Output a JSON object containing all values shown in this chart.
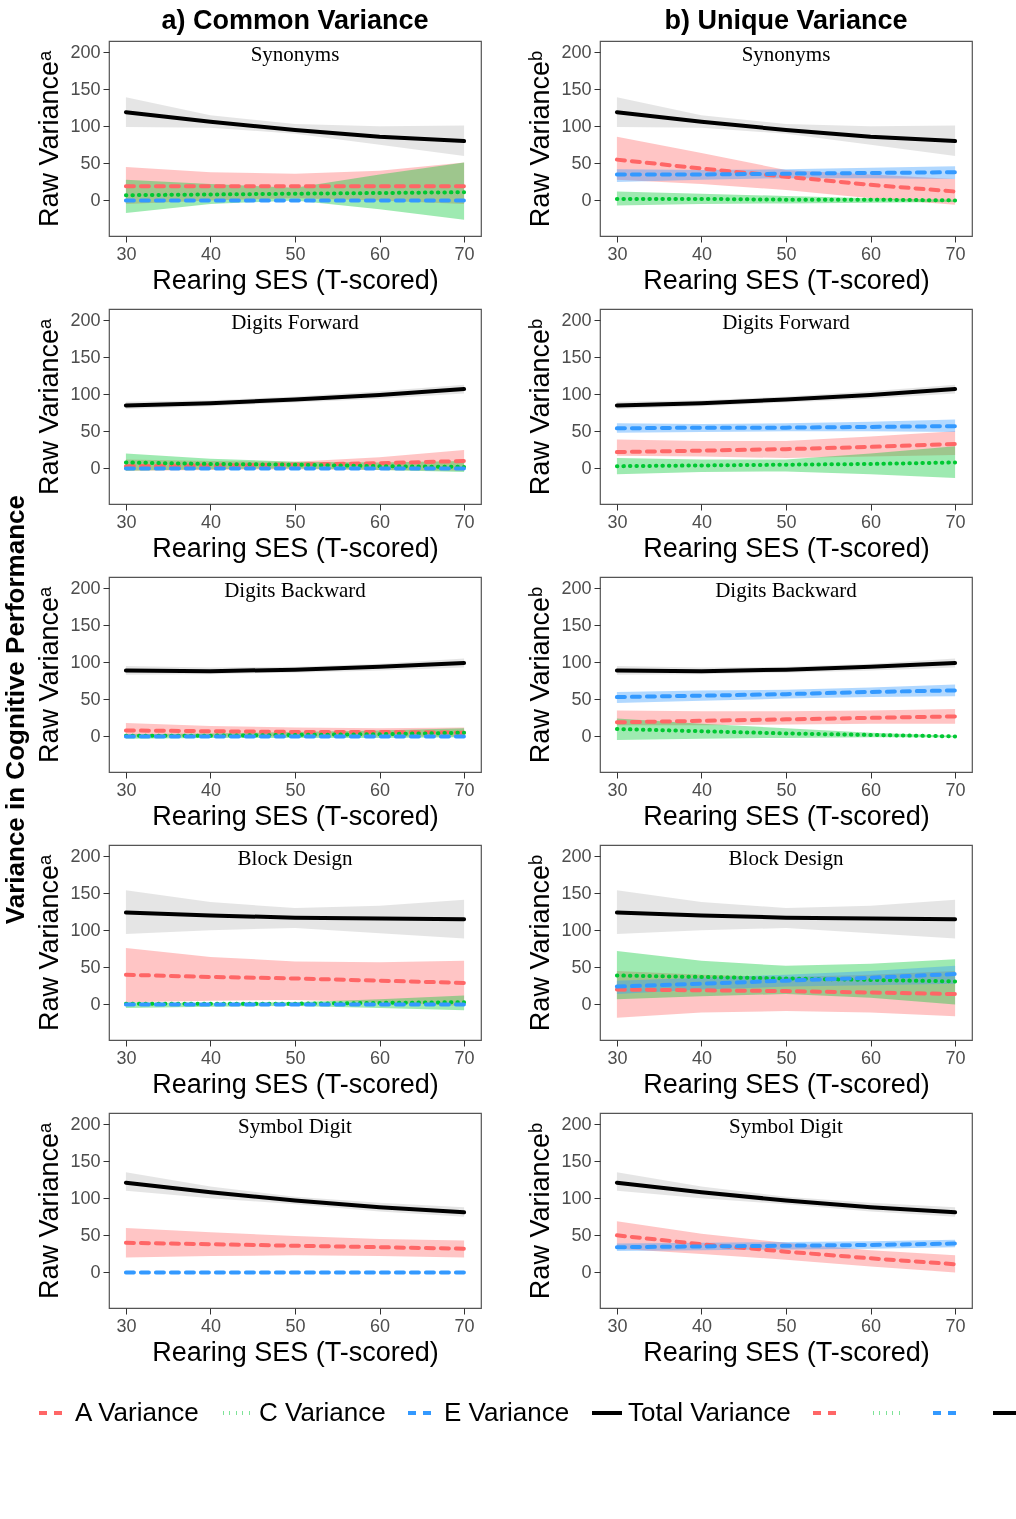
{
  "chart_data": [
    {
      "type": "line",
      "title": "Synonyms",
      "annotations": [
        "a) Common Variance",
        "Variance in Cognitive Performance"
      ],
      "xlabel": "Rearing SES (T-scored)",
      "ylabel": "Raw Varianceᵃ",
      "x": [
        30,
        40,
        50,
        60,
        70
      ],
      "xlim": [
        28,
        72
      ],
      "xticks": [
        30,
        40,
        50,
        60,
        70
      ],
      "ylim": [
        -48,
        215
      ],
      "yticks": [
        0,
        50,
        100,
        150,
        200
      ],
      "series": [
        {
          "color": "#ff6666",
          "line_style": "dashed",
          "values": [
            19,
            19,
            19,
            19,
            19
          ],
          "lower": [
            -5,
            0,
            3,
            0,
            -5
          ],
          "upper": [
            45,
            38,
            36,
            40,
            51
          ]
        },
        {
          "color": "#00c832",
          "line_style": "dotted",
          "values": [
            7,
            8,
            9,
            10,
            11
          ],
          "lower": [
            -17,
            -5,
            0,
            -12,
            -26
          ],
          "upper": [
            28,
            22,
            17,
            35,
            51
          ]
        },
        {
          "color": "#3399ff",
          "line_style": "dashed",
          "values": [
            0,
            0,
            0,
            0,
            0
          ]
        },
        {
          "color": "#000000",
          "line_style": "solid",
          "values": [
            119,
            106,
            95,
            86,
            80
          ],
          "lower": [
            99,
            98,
            90,
            75,
            60
          ],
          "upper": [
            139,
            115,
            103,
            100,
            101
          ]
        }
      ]
    },
    {
      "type": "line",
      "title": "Synonyms",
      "annotations": [
        "b) Unique Variance"
      ],
      "xlabel": "Rearing SES (T-scored)",
      "ylabel": "Raw Varianceᵇ",
      "x": [
        30,
        40,
        50,
        60,
        70
      ],
      "xlim": [
        28,
        72
      ],
      "xticks": [
        30,
        40,
        50,
        60,
        70
      ],
      "ylim": [
        -48,
        215
      ],
      "yticks": [
        0,
        50,
        100,
        150,
        200
      ],
      "series": [
        {
          "color": "#ff6666",
          "line_style": "dashed",
          "values": [
            55,
            43,
            32,
            21,
            12
          ],
          "lower": [
            28,
            22,
            14,
            3,
            -6
          ],
          "upper": [
            86,
            64,
            41,
            35,
            29
          ]
        },
        {
          "color": "#00c832",
          "line_style": "dotted",
          "values": [
            2,
            2,
            1,
            1,
            0
          ],
          "lower": [
            -7,
            -5,
            -4,
            -3,
            -2
          ],
          "upper": [
            12,
            9,
            6,
            3,
            1
          ]
        },
        {
          "color": "#3399ff",
          "line_style": "dashed",
          "values": [
            35,
            35,
            36,
            37,
            38
          ],
          "lower": [
            25,
            28,
            30,
            30,
            29
          ],
          "upper": [
            42,
            41,
            42,
            44,
            46
          ]
        },
        {
          "color": "#000000",
          "line_style": "solid",
          "values": [
            119,
            106,
            95,
            86,
            80
          ],
          "lower": [
            99,
            98,
            90,
            75,
            60
          ],
          "upper": [
            139,
            115,
            103,
            100,
            101
          ]
        }
      ]
    },
    {
      "type": "line",
      "title": "Digits Forward",
      "xlabel": "Rearing SES (T-scored)",
      "ylabel": "Raw Varianceᵃ",
      "x": [
        30,
        40,
        50,
        60,
        70
      ],
      "xlim": [
        28,
        72
      ],
      "xticks": [
        30,
        40,
        50,
        60,
        70
      ],
      "ylim": [
        -48,
        215
      ],
      "yticks": [
        0,
        50,
        100,
        150,
        200
      ],
      "series": [
        {
          "color": "#ff6666",
          "line_style": "dashed",
          "values": [
            3,
            4,
            5,
            7,
            10
          ],
          "lower": [
            -3,
            -2,
            -1,
            -2,
            -3
          ],
          "upper": [
            12,
            10,
            9,
            15,
            25
          ]
        },
        {
          "color": "#00c832",
          "line_style": "dotted",
          "values": [
            8,
            6,
            5,
            3,
            2
          ],
          "lower": [
            -3,
            -1,
            0,
            -2,
            -5
          ],
          "upper": [
            20,
            13,
            9,
            8,
            10
          ]
        },
        {
          "color": "#3399ff",
          "line_style": "dashed",
          "values": [
            0,
            0,
            0,
            0,
            0
          ]
        },
        {
          "color": "#000000",
          "line_style": "solid",
          "values": [
            85,
            88,
            93,
            99,
            107
          ],
          "lower": [
            80,
            84,
            89,
            94,
            101
          ],
          "upper": [
            90,
            92,
            97,
            104,
            113
          ]
        }
      ]
    },
    {
      "type": "line",
      "title": "Digits Forward",
      "xlabel": "Rearing SES (T-scored)",
      "ylabel": "Raw Varianceᵇ",
      "x": [
        30,
        40,
        50,
        60,
        70
      ],
      "xlim": [
        28,
        72
      ],
      "xticks": [
        30,
        40,
        50,
        60,
        70
      ],
      "ylim": [
        -48,
        215
      ],
      "yticks": [
        0,
        50,
        100,
        150,
        200
      ],
      "series": [
        {
          "color": "#ff6666",
          "line_style": "dashed",
          "values": [
            22,
            24,
            26,
            29,
            33
          ],
          "lower": [
            17,
            16,
            14,
            16,
            18
          ],
          "upper": [
            39,
            37,
            37,
            43,
            50
          ]
        },
        {
          "color": "#00c832",
          "line_style": "dotted",
          "values": [
            3,
            4,
            5,
            6,
            8
          ],
          "lower": [
            -8,
            -5,
            -4,
            -8,
            -13
          ],
          "upper": [
            14,
            12,
            12,
            20,
            30
          ]
        },
        {
          "color": "#3399ff",
          "line_style": "dashed",
          "values": [
            54,
            55,
            55,
            56,
            57
          ],
          "lower": [
            48,
            49,
            50,
            50,
            49
          ],
          "upper": [
            61,
            60,
            61,
            63,
            66
          ]
        },
        {
          "color": "#000000",
          "line_style": "solid",
          "values": [
            85,
            88,
            93,
            99,
            107
          ],
          "lower": [
            80,
            84,
            89,
            94,
            101
          ],
          "upper": [
            90,
            92,
            97,
            104,
            113
          ]
        }
      ]
    },
    {
      "type": "line",
      "title": "Digits Backward",
      "xlabel": "Rearing SES (T-scored)",
      "ylabel": "Raw Varianceᵃ",
      "x": [
        30,
        40,
        50,
        60,
        70
      ],
      "xlim": [
        28,
        72
      ],
      "xticks": [
        30,
        40,
        50,
        60,
        70
      ],
      "ylim": [
        -48,
        215
      ],
      "yticks": [
        0,
        50,
        100,
        150,
        200
      ],
      "series": [
        {
          "color": "#ff6666",
          "line_style": "dashed",
          "values": [
            8,
            7,
            6,
            6,
            5
          ],
          "lower": [
            0,
            0,
            0,
            0,
            0
          ],
          "upper": [
            18,
            14,
            12,
            11,
            12
          ]
        },
        {
          "color": "#00c832",
          "line_style": "dotted",
          "values": [
            1,
            1,
            2,
            3,
            5
          ],
          "lower": [
            -3,
            -2,
            -2,
            -2,
            -1
          ],
          "upper": [
            3,
            4,
            6,
            8,
            11
          ]
        },
        {
          "color": "#3399ff",
          "line_style": "dashed",
          "values": [
            0,
            0,
            0,
            0,
            0
          ]
        },
        {
          "color": "#000000",
          "line_style": "solid",
          "values": [
            89,
            88,
            90,
            94,
            99
          ],
          "lower": [
            83,
            84,
            86,
            89,
            93
          ],
          "upper": [
            95,
            93,
            94,
            98,
            105
          ]
        }
      ]
    },
    {
      "type": "line",
      "title": "Digits Backward",
      "xlabel": "Rearing SES (T-scored)",
      "ylabel": "Raw Varianceᵇ",
      "x": [
        30,
        40,
        50,
        60,
        70
      ],
      "xlim": [
        28,
        72
      ],
      "xticks": [
        30,
        40,
        50,
        60,
        70
      ],
      "ylim": [
        -48,
        215
      ],
      "yticks": [
        0,
        50,
        100,
        150,
        200
      ],
      "series": [
        {
          "color": "#ff6666",
          "line_style": "dashed",
          "values": [
            19,
            21,
            23,
            25,
            27
          ],
          "lower": [
            15,
            15,
            16,
            17,
            17
          ],
          "upper": [
            35,
            34,
            34,
            35,
            37
          ]
        },
        {
          "color": "#00c832",
          "line_style": "dotted",
          "values": [
            10,
            7,
            4,
            2,
            0
          ],
          "lower": [
            -5,
            -3,
            -2,
            -1,
            -1
          ],
          "upper": [
            24,
            17,
            11,
            5,
            1
          ]
        },
        {
          "color": "#3399ff",
          "line_style": "dashed",
          "values": [
            53,
            55,
            57,
            60,
            62
          ],
          "lower": [
            45,
            48,
            51,
            53,
            54
          ],
          "upper": [
            60,
            62,
            63,
            66,
            70
          ]
        },
        {
          "color": "#000000",
          "line_style": "solid",
          "values": [
            89,
            88,
            90,
            94,
            99
          ],
          "lower": [
            83,
            84,
            86,
            89,
            93
          ],
          "upper": [
            95,
            93,
            94,
            98,
            105
          ]
        }
      ]
    },
    {
      "type": "line",
      "title": "Block Design",
      "xlabel": "Rearing SES (T-scored)",
      "ylabel": "Raw Varianceᵃ",
      "x": [
        30,
        40,
        50,
        60,
        70
      ],
      "xlim": [
        28,
        72
      ],
      "xticks": [
        30,
        40,
        50,
        60,
        70
      ],
      "ylim": [
        -48,
        215
      ],
      "yticks": [
        0,
        50,
        100,
        150,
        200
      ],
      "series": [
        {
          "color": "#ff6666",
          "line_style": "dashed",
          "values": [
            40,
            37,
            35,
            32,
            29
          ],
          "lower": [
            3,
            5,
            6,
            3,
            -2
          ],
          "upper": [
            76,
            64,
            58,
            57,
            59
          ]
        },
        {
          "color": "#00c832",
          "line_style": "dotted",
          "values": [
            1,
            1,
            1,
            2,
            3
          ],
          "lower": [
            -5,
            -3,
            -2,
            -5,
            -8
          ],
          "upper": [
            3,
            2,
            3,
            7,
            12
          ]
        },
        {
          "color": "#3399ff",
          "line_style": "dashed",
          "values": [
            0,
            0,
            0,
            0,
            0
          ]
        },
        {
          "color": "#000000",
          "line_style": "solid",
          "values": [
            124,
            120,
            117,
            116,
            115
          ],
          "lower": [
            95,
            100,
            103,
            96,
            89
          ],
          "upper": [
            154,
            138,
            130,
            133,
            141
          ]
        }
      ]
    },
    {
      "type": "line",
      "title": "Block Design",
      "xlabel": "Rearing SES (T-scored)",
      "ylabel": "Raw Varianceᵇ",
      "x": [
        30,
        40,
        50,
        60,
        70
      ],
      "xlim": [
        28,
        72
      ],
      "xticks": [
        30,
        40,
        50,
        60,
        70
      ],
      "ylim": [
        -48,
        215
      ],
      "yticks": [
        0,
        50,
        100,
        150,
        200
      ],
      "series": [
        {
          "color": "#ff6666",
          "line_style": "dashed",
          "values": [
            20,
            19,
            18,
            16,
            14
          ],
          "lower": [
            -18,
            -11,
            -9,
            -11,
            -16
          ],
          "upper": [
            45,
            40,
            37,
            40,
            45
          ]
        },
        {
          "color": "#00c832",
          "line_style": "dotted",
          "values": [
            39,
            37,
            35,
            33,
            31
          ],
          "lower": [
            7,
            11,
            14,
            9,
            0
          ],
          "upper": [
            72,
            59,
            52,
            55,
            61
          ]
        },
        {
          "color": "#3399ff",
          "line_style": "dashed",
          "values": [
            24,
            28,
            32,
            36,
            41
          ],
          "lower": [
            14,
            20,
            24,
            26,
            28
          ],
          "upper": [
            32,
            36,
            40,
            45,
            52
          ]
        },
        {
          "color": "#000000",
          "line_style": "solid",
          "values": [
            124,
            120,
            117,
            116,
            115
          ],
          "lower": [
            95,
            100,
            103,
            96,
            89
          ],
          "upper": [
            154,
            138,
            130,
            133,
            141
          ]
        }
      ]
    },
    {
      "type": "line",
      "title": "Symbol Digit",
      "xlabel": "Rearing SES (T-scored)",
      "ylabel": "Raw Varianceᵃ",
      "x": [
        30,
        40,
        50,
        60,
        70
      ],
      "xlim": [
        28,
        72
      ],
      "xticks": [
        30,
        40,
        50,
        60,
        70
      ],
      "ylim": [
        -48,
        215
      ],
      "yticks": [
        0,
        50,
        100,
        150,
        200
      ],
      "legend": "bottom",
      "series": [
        {
          "name": "A Variance",
          "color": "#ff6666",
          "line_style": "dashed",
          "values": [
            40,
            38,
            36,
            34,
            32
          ],
          "lower": [
            20,
            22,
            23,
            22,
            20
          ],
          "upper": [
            60,
            54,
            49,
            45,
            43
          ]
        },
        {
          "name": "C Variance",
          "color": "#00c832",
          "line_style": "dotted",
          "values": [
            null,
            null,
            null,
            null,
            null
          ]
        },
        {
          "name": "E Variance",
          "color": "#3399ff",
          "line_style": "dashed",
          "values": [
            0,
            0,
            0,
            0,
            0
          ]
        },
        {
          "name": "Total Variance",
          "color": "#000000",
          "line_style": "solid",
          "values": [
            121,
            108,
            97,
            88,
            81
          ],
          "lower": [
            110,
            100,
            92,
            82,
            75
          ],
          "upper": [
            135,
            116,
            102,
            94,
            88
          ]
        }
      ]
    },
    {
      "type": "line",
      "title": "Symbol Digit",
      "xlabel": "Rearing SES (T-scored)",
      "ylabel": "Raw Varianceᵇ",
      "x": [
        30,
        40,
        50,
        60,
        70
      ],
      "xlim": [
        28,
        72
      ],
      "xticks": [
        30,
        40,
        50,
        60,
        70
      ],
      "ylim": [
        -48,
        215
      ],
      "yticks": [
        0,
        50,
        100,
        150,
        200
      ],
      "series": [
        {
          "color": "#ff6666",
          "line_style": "dashed",
          "values": [
            50,
            38,
            28,
            19,
            11
          ],
          "lower": [
            32,
            25,
            17,
            8,
            0
          ],
          "upper": [
            69,
            52,
            40,
            30,
            23
          ]
        },
        {
          "color": "#00c832",
          "line_style": "dotted",
          "values": [
            null,
            null,
            null,
            null,
            null
          ]
        },
        {
          "color": "#3399ff",
          "line_style": "dashed",
          "values": [
            34,
            35,
            36,
            37,
            39
          ],
          "lower": [
            29,
            30,
            31,
            32,
            34
          ],
          "upper": [
            39,
            40,
            41,
            42,
            44
          ]
        },
        {
          "color": "#000000",
          "line_style": "solid",
          "values": [
            121,
            108,
            97,
            88,
            81
          ],
          "lower": [
            110,
            100,
            92,
            82,
            75
          ],
          "upper": [
            135,
            116,
            102,
            94,
            88
          ]
        }
      ]
    }
  ]
}
